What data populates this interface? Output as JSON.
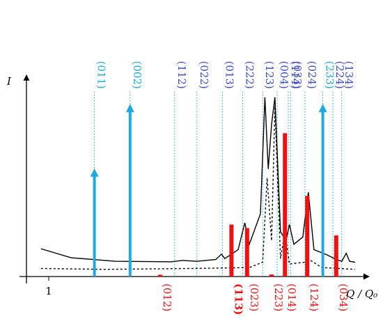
{
  "chart_data": {
    "type": "line",
    "xlabel": "Q / Q₀",
    "ylabel": "I",
    "x_ticks": [
      {
        "x": 1.0,
        "label": "1"
      }
    ],
    "xlim": [
      0.8,
      3.75
    ],
    "ylim": [
      0,
      1.0
    ],
    "grid": false,
    "legend": "none",
    "colors": {
      "light_blue": "#1fa9df",
      "dark_blue": "#3b4cc6",
      "red": "#ee1111",
      "curve": "#000000"
    },
    "series": [
      {
        "style": "solid",
        "points": [
          [
            0.93,
            0.155
          ],
          [
            1.2,
            0.105
          ],
          [
            1.6,
            0.085
          ],
          [
            2.1,
            0.082
          ],
          [
            2.2,
            0.09
          ],
          [
            2.33,
            0.085
          ],
          [
            2.5,
            0.095
          ],
          [
            2.55,
            0.125
          ],
          [
            2.58,
            0.1
          ],
          [
            2.7,
            0.15
          ],
          [
            2.76,
            0.3
          ],
          [
            2.8,
            0.18
          ],
          [
            2.9,
            0.35
          ],
          [
            2.94,
            1.0
          ],
          [
            2.97,
            0.6
          ],
          [
            3.0,
            0.85
          ],
          [
            3.03,
            1.0
          ],
          [
            3.08,
            0.25
          ],
          [
            3.13,
            0.2
          ],
          [
            3.16,
            0.29
          ],
          [
            3.2,
            0.18
          ],
          [
            3.28,
            0.22
          ],
          [
            3.33,
            0.47
          ],
          [
            3.38,
            0.15
          ],
          [
            3.5,
            0.12
          ],
          [
            3.58,
            0.095
          ],
          [
            3.63,
            0.085
          ],
          [
            3.67,
            0.13
          ],
          [
            3.7,
            0.085
          ],
          [
            3.75,
            0.08
          ]
        ]
      },
      {
        "style": "dashed",
        "points": [
          [
            0.93,
            0.045
          ],
          [
            1.5,
            0.04
          ],
          [
            2.3,
            0.045
          ],
          [
            2.8,
            0.05
          ],
          [
            2.92,
            0.08
          ],
          [
            2.96,
            0.55
          ],
          [
            3.0,
            0.2
          ],
          [
            3.03,
            0.95
          ],
          [
            3.08,
            0.1
          ],
          [
            3.12,
            0.25
          ],
          [
            3.16,
            0.07
          ],
          [
            3.3,
            0.08
          ],
          [
            3.35,
            0.09
          ],
          [
            3.45,
            0.05
          ],
          [
            3.75,
            0.04
          ]
        ]
      }
    ],
    "reflections": {
      "light_blue": [
        {
          "label": "(011)",
          "x": 1.41,
          "height": 0.58
        },
        {
          "label": "(002)",
          "x": 1.73,
          "height": 0.94
        },
        {
          "label": "(233)",
          "x": 3.46,
          "height": 0.94
        }
      ],
      "dark_blue": [
        {
          "label": "(112)",
          "x": 2.13
        },
        {
          "label": "(022)",
          "x": 2.33
        },
        {
          "label": "(013)",
          "x": 2.56
        },
        {
          "label": "(222)",
          "x": 2.74
        },
        {
          "label": "(123)",
          "x": 2.92
        },
        {
          "label": "(004)",
          "x": 3.05
        },
        {
          "label": "(114)",
          "x": 3.15
        },
        {
          "label": "(033)",
          "x": 3.17
        },
        {
          "label": "(024)",
          "x": 3.3
        },
        {
          "label": "(224)",
          "x": 3.55
        },
        {
          "label": "(134)",
          "x": 3.63
        }
      ],
      "red": [
        {
          "label": "(012)",
          "x": 2.0,
          "height": 0.01
        },
        {
          "label": "(113)",
          "x": 2.64,
          "height": 0.29,
          "bold": true
        },
        {
          "label": "(023)",
          "x": 2.78,
          "height": 0.27
        },
        {
          "label": "(223)",
          "x": 3.0,
          "height": 0.0
        },
        {
          "label": "(014)",
          "x": 3.12,
          "height": 0.8
        },
        {
          "label": "(124)",
          "x": 3.32,
          "height": 0.45
        },
        {
          "label": "(034)",
          "x": 3.58,
          "height": 0.23
        }
      ]
    }
  }
}
